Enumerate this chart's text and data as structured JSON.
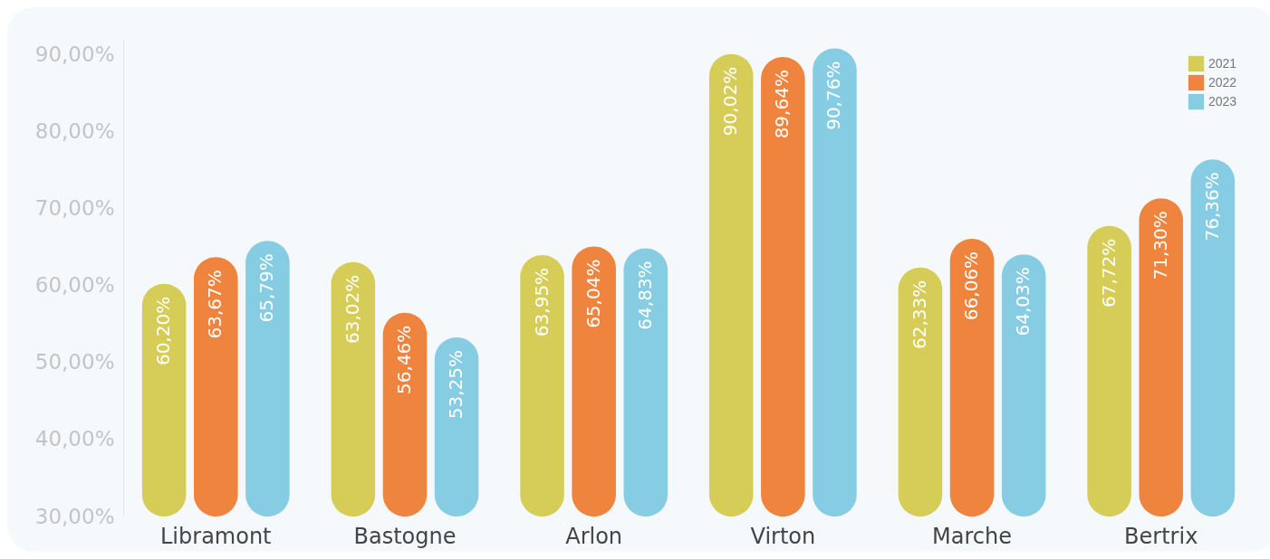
{
  "chart_data": {
    "type": "bar",
    "categories": [
      "Libramont",
      "Bastogne",
      "Arlon",
      "Virton",
      "Marche",
      "Bertrix"
    ],
    "series": [
      {
        "name": "2021",
        "color": "#d6cc58",
        "values": [
          60.2,
          63.02,
          63.95,
          90.02,
          62.33,
          67.72
        ],
        "value_labels": [
          "60,20%",
          "63,02%",
          "63,95%",
          "90,02%",
          "62,33%",
          "67,72%"
        ]
      },
      {
        "name": "2022",
        "color": "#ee843e",
        "values": [
          63.67,
          56.46,
          65.04,
          89.64,
          66.06,
          71.3
        ],
        "value_labels": [
          "63,67%",
          "56,46%",
          "65,04%",
          "89,64%",
          "66,06%",
          "71,30%"
        ]
      },
      {
        "name": "2023",
        "color": "#86cde4",
        "values": [
          65.79,
          53.25,
          64.83,
          90.76,
          64.03,
          76.36
        ],
        "value_labels": [
          "65,79%",
          "53,25%",
          "64,83%",
          "90,76%",
          "64,03%",
          "76,36%"
        ]
      }
    ],
    "ylim": [
      30,
      92
    ],
    "yticks": [
      {
        "value": 30,
        "label": "30,00%"
      },
      {
        "value": 40,
        "label": "40,00%"
      },
      {
        "value": 50,
        "label": "50,00%"
      },
      {
        "value": 60,
        "label": "60,00%"
      },
      {
        "value": 70,
        "label": "70,00%"
      },
      {
        "value": 80,
        "label": "80,00%"
      },
      {
        "value": 90,
        "label": "90,00%"
      }
    ],
    "grid": false,
    "legend": "top right"
  }
}
